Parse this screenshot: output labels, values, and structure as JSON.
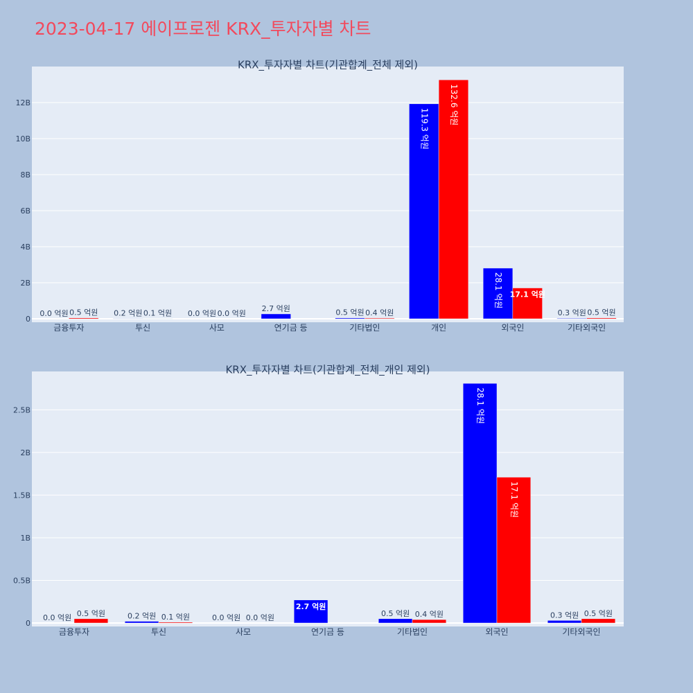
{
  "page": {
    "title": "2023-04-17 에이프로젠 KRX_투자자별 차트",
    "background": "#b0c4de",
    "title_color": "#f2495c"
  },
  "chart_data": [
    {
      "type": "bar",
      "title": "KRX_투자자별 차트(기관합계_전체 제외)",
      "categories": [
        "금융투자",
        "투신",
        "사모",
        "연기금 등",
        "기타법인",
        "개인",
        "외국인",
        "기타외국인"
      ],
      "series": [
        {
          "color": "#0000ff",
          "values": [
            0.0,
            0.2,
            0.0,
            2.7,
            0.5,
            119.3,
            28.1,
            0.3
          ],
          "labels": [
            "0.0 억원",
            "0.2 억원",
            "0.0 억원",
            "2.7 억원",
            "0.5 억원",
            "119.3 억원",
            "28.1 억원",
            "0.3 억원"
          ]
        },
        {
          "color": "#ff0000",
          "values": [
            0.5,
            0.1,
            0.0,
            null,
            0.4,
            132.6,
            17.1,
            0.5
          ],
          "labels": [
            "0.5 억원",
            "0.1 억원",
            "0.0 억원",
            "",
            "0.4 억원",
            "132.6 억원",
            "17.1 억원",
            "0.5 억원"
          ]
        }
      ],
      "unit_scale": 100000000,
      "y_ticks": [
        0,
        2000000000,
        4000000000,
        6000000000,
        8000000000,
        10000000000,
        12000000000
      ],
      "y_tick_labels": [
        "0",
        "2B",
        "4B",
        "6B",
        "8B",
        "10B",
        "12B"
      ],
      "ylim": [
        0,
        14000000000
      ],
      "grid": true,
      "legend": "none"
    },
    {
      "type": "bar",
      "title": "KRX_투자자별 차트(기관합계_전체_개인 제외)",
      "categories": [
        "금융투자",
        "투신",
        "사모",
        "연기금 등",
        "기타법인",
        "외국인",
        "기타외국인"
      ],
      "series": [
        {
          "color": "#0000ff",
          "values": [
            0.0,
            0.2,
            0.0,
            2.7,
            0.5,
            28.1,
            0.3
          ],
          "labels": [
            "0.0 억원",
            "0.2 억원",
            "0.0 억원",
            "2.7 억원",
            "0.5 억원",
            "28.1 억원",
            "0.3 억원"
          ]
        },
        {
          "color": "#ff0000",
          "values": [
            0.5,
            0.1,
            0.0,
            null,
            0.4,
            17.1,
            0.5
          ],
          "labels": [
            "0.5 억원",
            "0.1 억원",
            "0.0 억원",
            "",
            "0.4 억원",
            "17.1 억원",
            "0.5 억원"
          ]
        }
      ],
      "unit_scale": 100000000,
      "y_ticks": [
        0,
        500000000,
        1000000000,
        1500000000,
        2000000000,
        2500000000
      ],
      "y_tick_labels": [
        "0",
        "0.5B",
        "1B",
        "1.5B",
        "2B",
        "2.5B"
      ],
      "ylim": [
        0,
        2950000000
      ],
      "grid": true,
      "legend": "none"
    }
  ]
}
